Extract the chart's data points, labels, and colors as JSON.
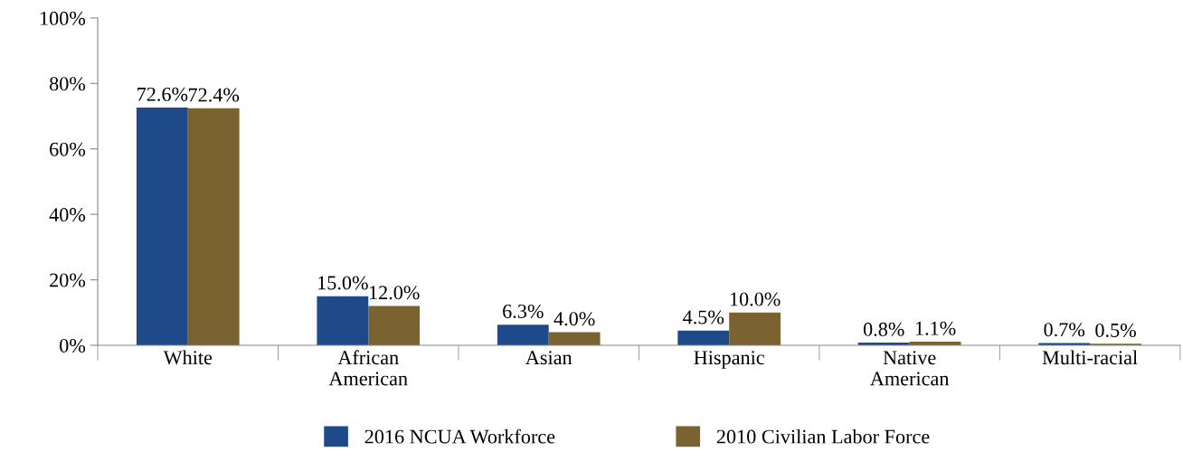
{
  "chart_data": {
    "type": "bar",
    "categories": [
      "White",
      "African\nAmerican",
      "Asian",
      "Hispanic",
      "Native\nAmerican",
      "Multi-racial"
    ],
    "series": [
      {
        "name": "2016 NCUA Workforce",
        "color": "#1f4a8a",
        "values": [
          72.6,
          15.0,
          6.3,
          4.5,
          0.8,
          0.7
        ],
        "value_labels": [
          "72.6%",
          "15.0%",
          "6.3%",
          "4.5%",
          "0.8%",
          "0.7%"
        ]
      },
      {
        "name": "2010 Civilian Labor Force",
        "color": "#7a6330",
        "values": [
          72.4,
          12.0,
          4.0,
          10.0,
          1.1,
          0.5
        ],
        "value_labels": [
          "72.4%",
          "12.0%",
          "4.0%",
          "10.0%",
          "1.1%",
          "0.5%"
        ]
      }
    ],
    "ylim": [
      0,
      100
    ],
    "yticks": [
      {
        "value": 0,
        "label": "0%"
      },
      {
        "value": 20,
        "label": "20%"
      },
      {
        "value": 40,
        "label": "40%"
      },
      {
        "value": 60,
        "label": "60%"
      },
      {
        "value": 80,
        "label": "80%"
      },
      {
        "value": 100,
        "label": "100%"
      }
    ],
    "grid": false,
    "legend": "bottom"
  }
}
